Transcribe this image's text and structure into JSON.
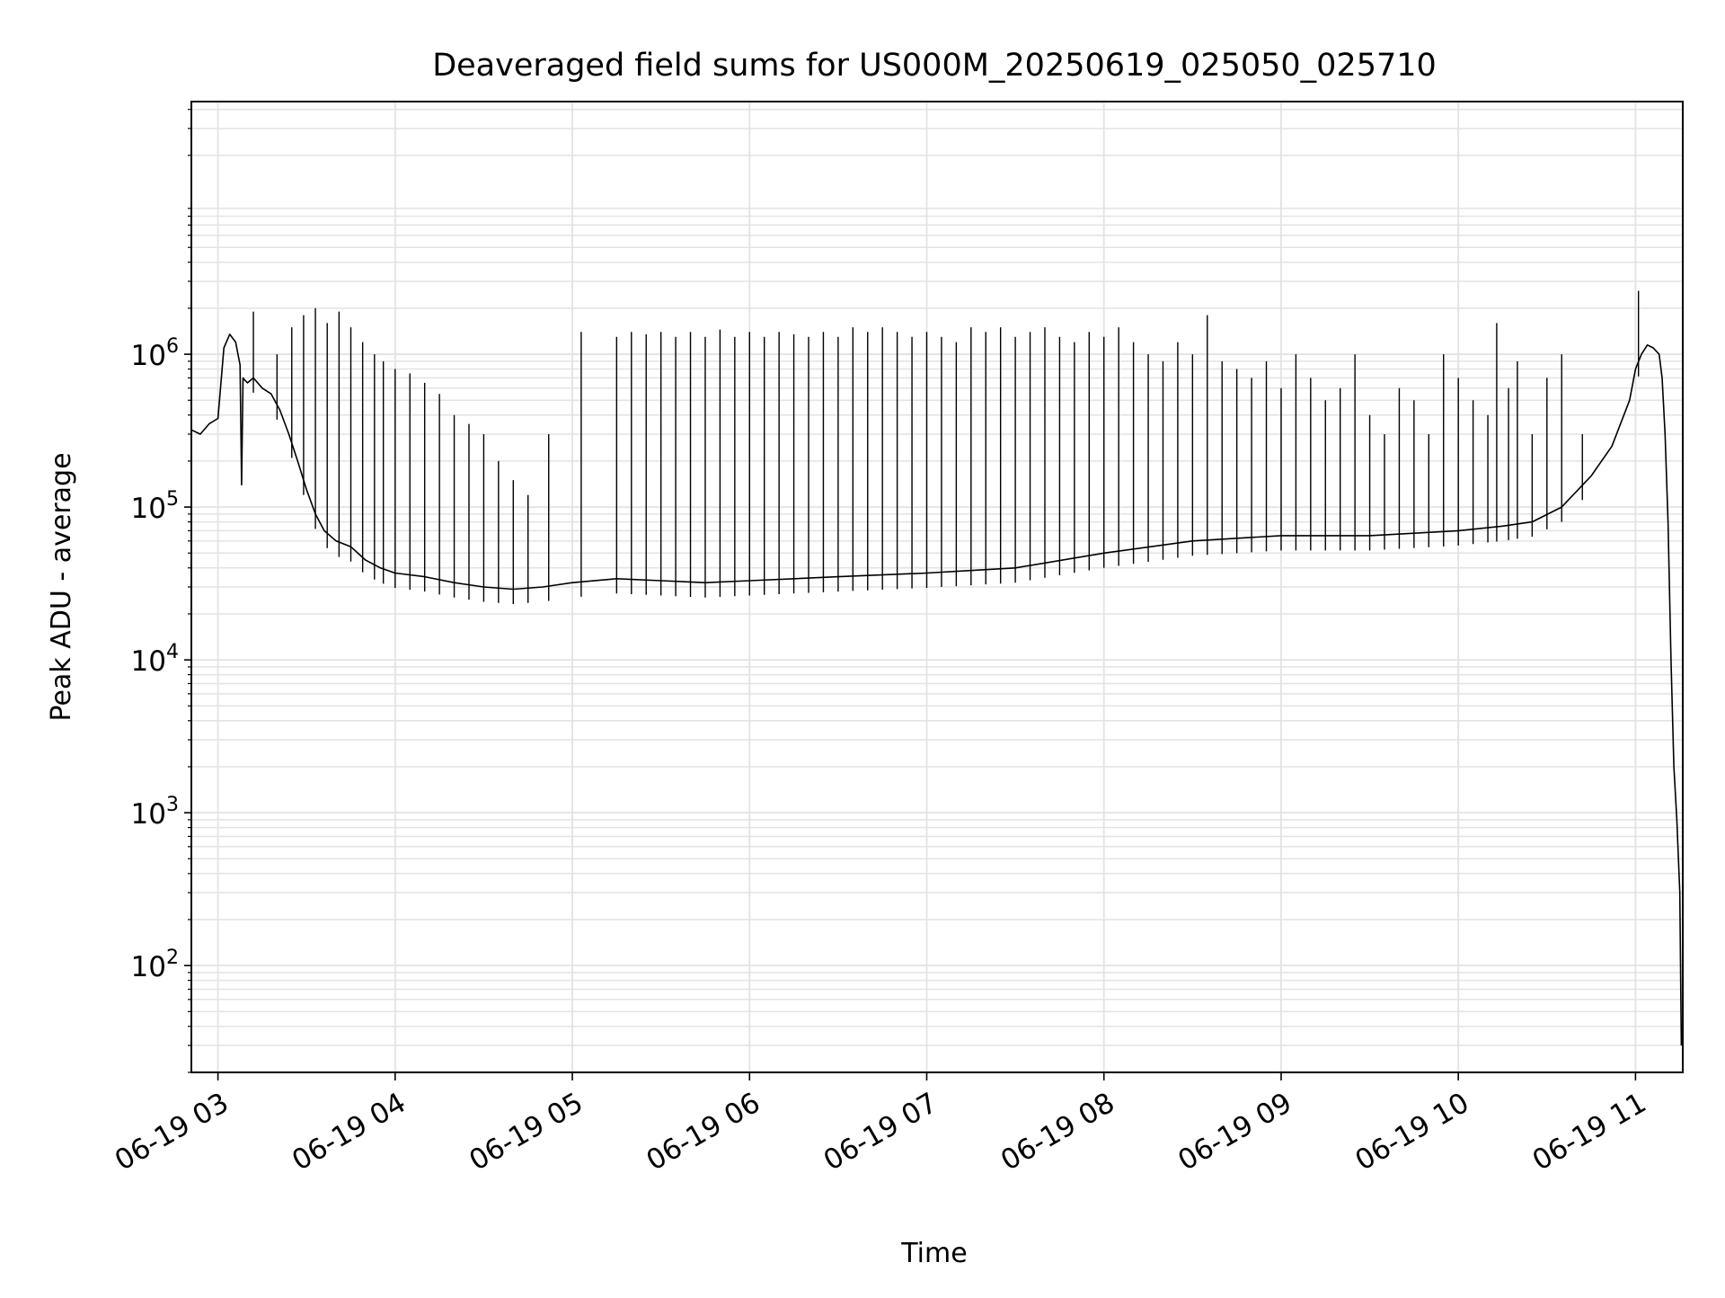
{
  "chart_data": {
    "type": "line",
    "title": "Deaveraged field sums for US000M_20250619_025050_025710",
    "xlabel": "Time",
    "ylabel": "Peak ADU - average",
    "yscale": "log",
    "ylim": [
      20,
      45000000
    ],
    "xlim": [
      "2025-06-19 02:51:00",
      "2025-06-19 11:16:00"
    ],
    "x_ticks": [
      "2025-06-19 03:00",
      "2025-06-19 04:00",
      "2025-06-19 05:00",
      "2025-06-19 06:00",
      "2025-06-19 07:00",
      "2025-06-19 08:00",
      "2025-06-19 09:00",
      "2025-06-19 10:00",
      "2025-06-19 11:00"
    ],
    "x_tick_labels": [
      "06-19 03",
      "06-19 04",
      "06-19 05",
      "06-19 06",
      "06-19 07",
      "06-19 08",
      "06-19 09",
      "06-19 10",
      "06-19 11"
    ],
    "y_ticks": [
      100,
      1000,
      10000,
      100000,
      1000000
    ],
    "y_tick_labels": [
      "10^2",
      "10^3",
      "10^4",
      "10^5",
      "10^6"
    ],
    "grid": true,
    "line_color": "#000000",
    "grid_color": "#e3e3e3",
    "series": [
      {
        "x": [
          "2025-06-19 02:51:00",
          "2025-06-19 02:54:00",
          "2025-06-19 02:57:00",
          "2025-06-19 03:00:00",
          "2025-06-19 03:02:00",
          "2025-06-19 03:04:00",
          "2025-06-19 03:06:00",
          "2025-06-19 03:07:30",
          "2025-06-19 03:08:00",
          "2025-06-19 03:08:30",
          "2025-06-19 03:09:00",
          "2025-06-19 03:10:00",
          "2025-06-19 03:12:00",
          "2025-06-19 03:15:00",
          "2025-06-19 03:18:00",
          "2025-06-19 03:21:00",
          "2025-06-19 03:24:00",
          "2025-06-19 03:27:00",
          "2025-06-19 03:30:00",
          "2025-06-19 03:33:00",
          "2025-06-19 03:36:00",
          "2025-06-19 03:40:00",
          "2025-06-19 03:45:00",
          "2025-06-19 03:50:00",
          "2025-06-19 03:55:00",
          "2025-06-19 04:00:00",
          "2025-06-19 04:10:00",
          "2025-06-19 04:20:00",
          "2025-06-19 04:30:00",
          "2025-06-19 04:40:00",
          "2025-06-19 04:50:00",
          "2025-06-19 05:00:00",
          "2025-06-19 05:15:00",
          "2025-06-19 05:30:00",
          "2025-06-19 05:45:00",
          "2025-06-19 06:00:00",
          "2025-06-19 06:30:00",
          "2025-06-19 07:00:00",
          "2025-06-19 07:30:00",
          "2025-06-19 08:00:00",
          "2025-06-19 08:30:00",
          "2025-06-19 09:00:00",
          "2025-06-19 09:30:00",
          "2025-06-19 10:00:00",
          "2025-06-19 10:15:00",
          "2025-06-19 10:25:00",
          "2025-06-19 10:35:00",
          "2025-06-19 10:45:00",
          "2025-06-19 10:52:00",
          "2025-06-19 10:58:00",
          "2025-06-19 11:00:00",
          "2025-06-19 11:02:00",
          "2025-06-19 11:04:00",
          "2025-06-19 11:06:00",
          "2025-06-19 11:08:00",
          "2025-06-19 11:09:00",
          "2025-06-19 11:10:00",
          "2025-06-19 11:11:00",
          "2025-06-19 11:12:00",
          "2025-06-19 11:13:00",
          "2025-06-19 11:14:00",
          "2025-06-19 11:15:00",
          "2025-06-19 11:15:30"
        ],
        "y": [
          320000,
          300000,
          350000,
          380000,
          1100000,
          1350000,
          1200000,
          850000,
          140000,
          700000,
          680000,
          650000,
          700000,
          600000,
          550000,
          430000,
          300000,
          200000,
          130000,
          90000,
          70000,
          60000,
          55000,
          45000,
          40000,
          37000,
          35000,
          32000,
          30000,
          29000,
          30000,
          32000,
          34000,
          33000,
          32000,
          33000,
          35000,
          37000,
          40000,
          50000,
          60000,
          65000,
          65000,
          70000,
          75000,
          80000,
          100000,
          160000,
          250000,
          500000,
          800000,
          1000000,
          1150000,
          1100000,
          1000000,
          700000,
          300000,
          80000,
          10000,
          2000,
          900,
          300,
          30
        ],
        "spikes": [
          [
            "2025-06-19 03:12:00",
            1900000
          ],
          [
            "2025-06-19 03:20:00",
            1000000
          ],
          [
            "2025-06-19 03:25:00",
            1500000
          ],
          [
            "2025-06-19 03:29:00",
            1800000
          ],
          [
            "2025-06-19 03:33:00",
            2000000
          ],
          [
            "2025-06-19 03:37:00",
            1600000
          ],
          [
            "2025-06-19 03:41:00",
            1900000
          ],
          [
            "2025-06-19 03:45:00",
            1500000
          ],
          [
            "2025-06-19 03:49:00",
            1200000
          ],
          [
            "2025-06-19 03:53:00",
            1000000
          ],
          [
            "2025-06-19 03:56:00",
            900000
          ],
          [
            "2025-06-19 04:00:00",
            800000
          ],
          [
            "2025-06-19 04:05:00",
            750000
          ],
          [
            "2025-06-19 04:10:00",
            650000
          ],
          [
            "2025-06-19 04:15:00",
            550000
          ],
          [
            "2025-06-19 04:20:00",
            400000
          ],
          [
            "2025-06-19 04:25:00",
            350000
          ],
          [
            "2025-06-19 04:30:00",
            300000
          ],
          [
            "2025-06-19 04:35:00",
            200000
          ],
          [
            "2025-06-19 04:40:00",
            150000
          ],
          [
            "2025-06-19 04:45:00",
            120000
          ],
          [
            "2025-06-19 04:52:00",
            300000
          ],
          [
            "2025-06-19 05:03:00",
            1400000
          ],
          [
            "2025-06-19 05:15:00",
            1300000
          ],
          [
            "2025-06-19 05:20:00",
            1400000
          ],
          [
            "2025-06-19 05:25:00",
            1350000
          ],
          [
            "2025-06-19 05:30:00",
            1400000
          ],
          [
            "2025-06-19 05:35:00",
            1300000
          ],
          [
            "2025-06-19 05:40:00",
            1400000
          ],
          [
            "2025-06-19 05:45:00",
            1300000
          ],
          [
            "2025-06-19 05:50:00",
            1450000
          ],
          [
            "2025-06-19 05:55:00",
            1300000
          ],
          [
            "2025-06-19 06:00:00",
            1400000
          ],
          [
            "2025-06-19 06:05:00",
            1300000
          ],
          [
            "2025-06-19 06:10:00",
            1400000
          ],
          [
            "2025-06-19 06:15:00",
            1350000
          ],
          [
            "2025-06-19 06:20:00",
            1300000
          ],
          [
            "2025-06-19 06:25:00",
            1400000
          ],
          [
            "2025-06-19 06:30:00",
            1300000
          ],
          [
            "2025-06-19 06:35:00",
            1500000
          ],
          [
            "2025-06-19 06:40:00",
            1400000
          ],
          [
            "2025-06-19 06:45:00",
            1500000
          ],
          [
            "2025-06-19 06:50:00",
            1400000
          ],
          [
            "2025-06-19 06:55:00",
            1300000
          ],
          [
            "2025-06-19 07:00:00",
            1400000
          ],
          [
            "2025-06-19 07:05:00",
            1300000
          ],
          [
            "2025-06-19 07:10:00",
            1200000
          ],
          [
            "2025-06-19 07:15:00",
            1500000
          ],
          [
            "2025-06-19 07:20:00",
            1400000
          ],
          [
            "2025-06-19 07:25:00",
            1500000
          ],
          [
            "2025-06-19 07:30:00",
            1300000
          ],
          [
            "2025-06-19 07:35:00",
            1400000
          ],
          [
            "2025-06-19 07:40:00",
            1500000
          ],
          [
            "2025-06-19 07:45:00",
            1300000
          ],
          [
            "2025-06-19 07:50:00",
            1200000
          ],
          [
            "2025-06-19 07:55:00",
            1400000
          ],
          [
            "2025-06-19 08:00:00",
            1300000
          ],
          [
            "2025-06-19 08:05:00",
            1500000
          ],
          [
            "2025-06-19 08:10:00",
            1200000
          ],
          [
            "2025-06-19 08:15:00",
            1000000
          ],
          [
            "2025-06-19 08:20:00",
            900000
          ],
          [
            "2025-06-19 08:25:00",
            1200000
          ],
          [
            "2025-06-19 08:30:00",
            1000000
          ],
          [
            "2025-06-19 08:35:00",
            1800000
          ],
          [
            "2025-06-19 08:40:00",
            900000
          ],
          [
            "2025-06-19 08:45:00",
            800000
          ],
          [
            "2025-06-19 08:50:00",
            700000
          ],
          [
            "2025-06-19 08:55:00",
            900000
          ],
          [
            "2025-06-19 09:00:00",
            600000
          ],
          [
            "2025-06-19 09:05:00",
            1000000
          ],
          [
            "2025-06-19 09:10:00",
            700000
          ],
          [
            "2025-06-19 09:15:00",
            500000
          ],
          [
            "2025-06-19 09:20:00",
            600000
          ],
          [
            "2025-06-19 09:25:00",
            1000000
          ],
          [
            "2025-06-19 09:30:00",
            400000
          ],
          [
            "2025-06-19 09:35:00",
            300000
          ],
          [
            "2025-06-19 09:40:00",
            600000
          ],
          [
            "2025-06-19 09:45:00",
            500000
          ],
          [
            "2025-06-19 09:50:00",
            300000
          ],
          [
            "2025-06-19 09:55:00",
            1000000
          ],
          [
            "2025-06-19 10:00:00",
            700000
          ],
          [
            "2025-06-19 10:05:00",
            500000
          ],
          [
            "2025-06-19 10:10:00",
            400000
          ],
          [
            "2025-06-19 10:13:00",
            1600000
          ],
          [
            "2025-06-19 10:17:00",
            600000
          ],
          [
            "2025-06-19 10:20:00",
            900000
          ],
          [
            "2025-06-19 10:25:00",
            300000
          ],
          [
            "2025-06-19 10:30:00",
            700000
          ],
          [
            "2025-06-19 10:35:00",
            1000000
          ],
          [
            "2025-06-19 10:42:00",
            300000
          ],
          [
            "2025-06-19 11:01:00",
            2600000
          ]
        ]
      }
    ]
  }
}
